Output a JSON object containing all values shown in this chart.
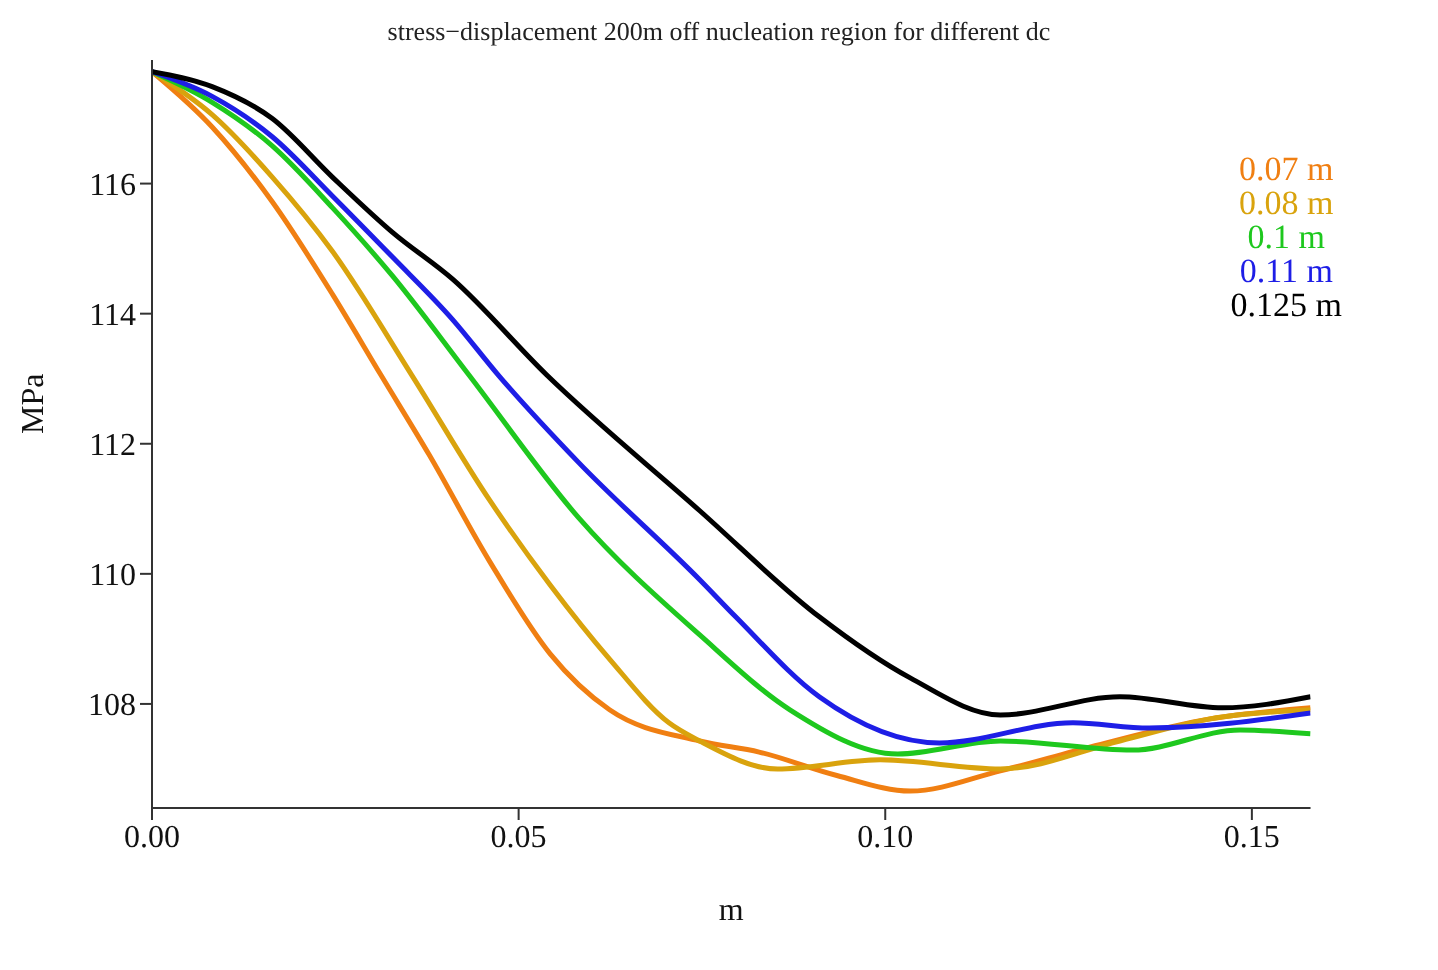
{
  "chart_data": {
    "type": "line",
    "title": "stress−displacement 200m off nucleation region for different dc",
    "xlabel": "m",
    "ylabel": "MPa",
    "xlim": [
      0,
      0.158
    ],
    "xticks": [
      {
        "value": 0,
        "label": "0.00"
      },
      {
        "value": 0.05,
        "label": "0.05"
      },
      {
        "value": 0.1,
        "label": "0.10"
      },
      {
        "value": 0.15,
        "label": "0.15"
      }
    ],
    "ylim": [
      106.4,
      117.9
    ],
    "yticks": [
      108,
      110,
      112,
      114,
      116
    ],
    "grid": false,
    "legend": "top right",
    "marker": "none",
    "line_style": "solid",
    "series": [
      {
        "name": "0.07 m",
        "color": "#f07f12",
        "x": [
          0,
          0.0082,
          0.0164,
          0.0246,
          0.0312,
          0.0378,
          0.046,
          0.0543,
          0.0624,
          0.0747,
          0.0828,
          0.0934,
          0.1034,
          0.1157,
          0.128,
          0.1443,
          0.158
        ],
        "values": [
          117.72,
          116.87,
          115.72,
          114.3,
          113.06,
          111.83,
          110.2,
          108.77,
          107.91,
          107.43,
          107.26,
          106.9,
          106.66,
          106.97,
          107.34,
          107.77,
          107.94
        ]
      },
      {
        "name": "0.08 m",
        "color": "#d9a30d",
        "x": [
          0,
          0.0082,
          0.0164,
          0.0246,
          0.0354,
          0.046,
          0.0543,
          0.0624,
          0.0705,
          0.0747,
          0.0853,
          0.0993,
          0.1157,
          0.132,
          0.1443,
          0.158
        ],
        "values": [
          117.72,
          117.06,
          116.1,
          114.96,
          113.06,
          111.14,
          109.83,
          108.69,
          107.71,
          107.43,
          107.0,
          107.14,
          107.0,
          107.43,
          107.77,
          107.91
        ]
      },
      {
        "name": "0.1 m",
        "color": "#1ec81e",
        "x": [
          0,
          0.0082,
          0.0164,
          0.0246,
          0.0328,
          0.0432,
          0.0582,
          0.0747,
          0.087,
          0.1017,
          0.1157,
          0.1337,
          0.1484,
          0.158
        ],
        "values": [
          117.72,
          117.25,
          116.58,
          115.63,
          114.58,
          113.06,
          110.86,
          109.06,
          107.91,
          107.23,
          107.43,
          107.29,
          107.6,
          107.54
        ]
      },
      {
        "name": "0.11 m",
        "color": "#1e1ee6",
        "x": [
          0,
          0.0082,
          0.0164,
          0.0246,
          0.0328,
          0.041,
          0.0472,
          0.0582,
          0.0747,
          0.0796,
          0.091,
          0.1074,
          0.1256,
          0.136,
          0.158
        ],
        "values": [
          117.72,
          117.34,
          116.72,
          115.81,
          114.87,
          113.91,
          113.06,
          111.71,
          109.91,
          109.34,
          108.11,
          107.4,
          107.71,
          107.63,
          107.86
        ]
      },
      {
        "name": "0.125 m",
        "color": "#000000",
        "x": [
          0,
          0.0082,
          0.0164,
          0.0246,
          0.0328,
          0.041,
          0.0538,
          0.0747,
          0.091,
          0.1034,
          0.1157,
          0.132,
          0.146,
          0.158
        ],
        "values": [
          117.72,
          117.49,
          117.0,
          116.1,
          115.25,
          114.53,
          113.06,
          110.97,
          109.34,
          108.4,
          107.83,
          108.11,
          107.94,
          108.11
        ]
      }
    ]
  }
}
